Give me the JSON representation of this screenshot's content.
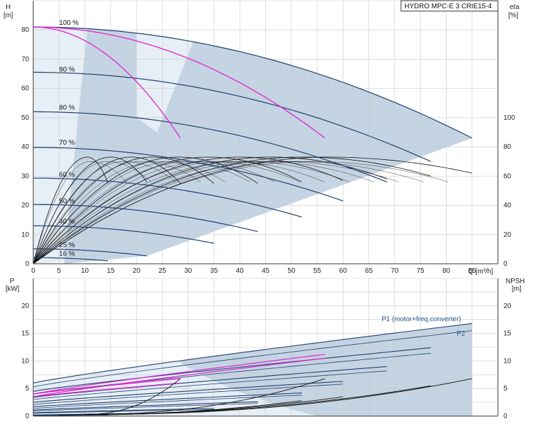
{
  "chart_data": [
    {
      "type": "line",
      "title": "HYDRO MPC-E 3 CRIE15-4",
      "left_axis": {
        "label": "H",
        "unit": "[m]",
        "range": [
          0,
          90
        ],
        "ticks": [
          0,
          10,
          20,
          30,
          40,
          50,
          60,
          70,
          80
        ]
      },
      "right_axis": {
        "label": "eta",
        "unit": "[%]",
        "range": [
          0,
          180
        ],
        "ticks": [
          0,
          20,
          40,
          60,
          80,
          100
        ]
      },
      "x_axis": {
        "label": "Q [m³/h]",
        "range": [
          0,
          90
        ],
        "ticks": [
          0,
          5,
          10,
          15,
          20,
          25,
          30,
          35,
          40,
          45,
          50,
          55,
          60,
          65,
          70,
          75,
          80,
          85
        ]
      },
      "grid": true,
      "speed_labels": [
        {
          "text": "100 %",
          "q": 5,
          "h": 81
        },
        {
          "text": "90 %",
          "q": 5,
          "h": 65
        },
        {
          "text": "80 %",
          "q": 5,
          "h": 52
        },
        {
          "text": "70 %",
          "q": 5,
          "h": 40
        },
        {
          "text": "60 %",
          "q": 5,
          "h": 29
        },
        {
          "text": "50 %",
          "q": 5,
          "h": 20
        },
        {
          "text": "40 %",
          "q": 5,
          "h": 13
        },
        {
          "text": "25 %",
          "q": 5,
          "h": 5
        },
        {
          "text": "16 %",
          "q": 5,
          "h": 2
        }
      ],
      "head_curves": [
        {
          "speed": 100,
          "h0": 81,
          "qmax": 85,
          "hend": 43
        },
        {
          "speed": 90,
          "h0": 65.5,
          "qmax": 77,
          "hend": 35
        },
        {
          "speed": 80,
          "h0": 52,
          "qmax": 68.5,
          "hend": 28
        },
        {
          "speed": 70,
          "h0": 39.8,
          "qmax": 60,
          "hend": 21.5
        },
        {
          "speed": 60,
          "h0": 29.3,
          "qmax": 52,
          "hend": 16
        },
        {
          "speed": 50,
          "h0": 20.3,
          "qmax": 43.5,
          "hend": 11
        },
        {
          "speed": 40,
          "h0": 13,
          "qmax": 35,
          "hend": 7
        },
        {
          "speed": 25,
          "h0": 5.1,
          "qmax": 22,
          "hend": 2.7
        },
        {
          "speed": 16,
          "h0": 2.1,
          "qmax": 14.5,
          "hend": 1
        }
      ],
      "highlight_curves": [
        {
          "h0": 81,
          "qmax": 28.5,
          "hend": 43
        },
        {
          "h0": 81,
          "qmax": 56.5,
          "hend": 43
        }
      ],
      "efficiency_curves": [
        {
          "qmax": 14.5,
          "peak": 73,
          "qpeak": 10.5,
          "end": 55
        },
        {
          "qmax": 22,
          "peak": 73,
          "qpeak": 15,
          "end": 56
        },
        {
          "qmax": 28.5,
          "peak": 73,
          "qpeak": 19,
          "end": 55
        },
        {
          "qmax": 35,
          "peak": 73,
          "qpeak": 23,
          "end": 55
        },
        {
          "qmax": 43.5,
          "peak": 73,
          "qpeak": 28,
          "end": 55
        },
        {
          "qmax": 52,
          "peak": 73,
          "qpeak": 34,
          "end": 56
        },
        {
          "qmax": 60,
          "peak": 73,
          "qpeak": 40,
          "end": 57
        },
        {
          "qmax": 68.5,
          "peak": 73,
          "qpeak": 46,
          "end": 58
        },
        {
          "qmax": 77,
          "peak": 73,
          "qpeak": 52,
          "end": 60
        },
        {
          "qmax": 85,
          "peak": 73,
          "qpeak": 57,
          "end": 62
        }
      ]
    },
    {
      "type": "line",
      "left_axis": {
        "label": "P",
        "unit": "[kW]",
        "range": [
          0,
          25
        ],
        "ticks": [
          0,
          5,
          10,
          15,
          20
        ]
      },
      "right_axis": {
        "label": "NPSH",
        "unit": "[m]",
        "range": [
          0,
          25
        ],
        "ticks": [
          0,
          5,
          10,
          15,
          20
        ]
      },
      "x_axis": {
        "range": [
          0,
          90
        ]
      },
      "grid": true,
      "series_labels": [
        {
          "text": "P1 (motor+freq.converter)",
          "q": 68,
          "p": 17.2
        },
        {
          "text": "P2",
          "q": 82,
          "p": 14.6
        }
      ],
      "p1_curves": [
        {
          "p0": 6,
          "qmax": 85,
          "pend": 16.8
        },
        {
          "p0": 4.5,
          "qmax": 77,
          "pend": 12.4
        },
        {
          "p0": 3.4,
          "qmax": 68.5,
          "pend": 9
        },
        {
          "p0": 2.5,
          "qmax": 60,
          "pend": 6.3
        },
        {
          "p0": 1.7,
          "qmax": 52,
          "pend": 4.2
        },
        {
          "p0": 1.1,
          "qmax": 43.5,
          "pend": 2.6
        },
        {
          "p0": 0.6,
          "qmax": 35,
          "pend": 1.4
        },
        {
          "p0": 0.2,
          "qmax": 22,
          "pend": 0.5
        },
        {
          "p0": 0.1,
          "qmax": 14.5,
          "pend": 0.2
        }
      ],
      "p2_curves": [
        {
          "p0": 5.3,
          "qmax": 85,
          "pend": 15.5
        },
        {
          "p0": 4.0,
          "qmax": 77,
          "pend": 11.4
        },
        {
          "p0": 3.0,
          "qmax": 68.5,
          "pend": 8.2
        },
        {
          "p0": 2.1,
          "qmax": 60,
          "pend": 5.8
        },
        {
          "p0": 1.4,
          "qmax": 52,
          "pend": 3.8
        },
        {
          "p0": 0.9,
          "qmax": 43.5,
          "pend": 2.3
        },
        {
          "p0": 0.5,
          "qmax": 35,
          "pend": 1.2
        }
      ],
      "p_highlight": [
        {
          "p0": 4,
          "qmax": 28.5,
          "pend": 6.8
        },
        {
          "p0": 3.5,
          "qmax": 28.5,
          "pend": 6.0
        },
        {
          "p0": 4,
          "qmax": 56.5,
          "pend": 11.2
        },
        {
          "p0": 3.5,
          "qmax": 56.5,
          "pend": 10.5
        }
      ],
      "npsh_curves": [
        {
          "q0": 10,
          "qmax": 85,
          "n0": 0.3,
          "nend": 6.8
        },
        {
          "q0": 10,
          "qmax": 56.5,
          "n0": 0.3,
          "nend": 6.8
        },
        {
          "q0": 10,
          "qmax": 28.5,
          "n0": 0.3,
          "nend": 6.8
        },
        {
          "q0": 5,
          "qmax": 77,
          "n0": 0.2,
          "nend": 5.5
        },
        {
          "q0": 5,
          "qmax": 60,
          "n0": 0.2,
          "nend": 3.5
        },
        {
          "q0": 5,
          "qmax": 52,
          "n0": 0.2,
          "nend": 2.8
        }
      ]
    }
  ],
  "colors": {
    "grid": "#c9c9c9",
    "axis": "#333333",
    "region_dark": "#c5d4e3",
    "region_light": "#e6eef6",
    "curve_blue": "#1f3f6e",
    "curve_pink": "#e020d0",
    "curve_black": "#111111"
  }
}
